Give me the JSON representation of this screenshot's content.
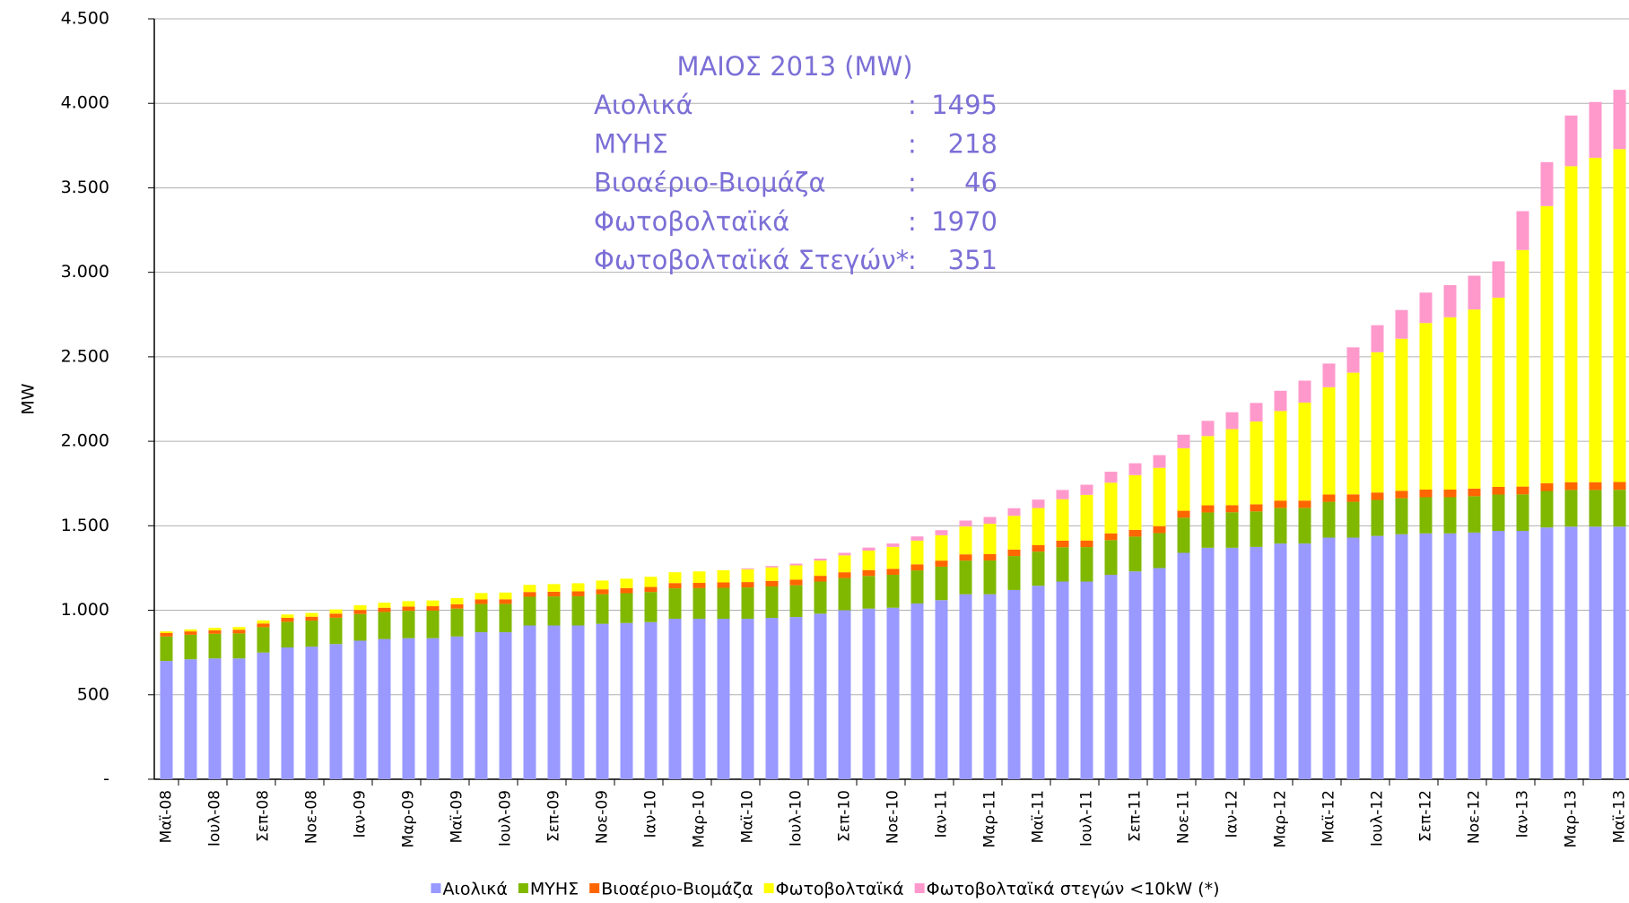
{
  "chart_data": {
    "type": "stacked-bar",
    "y_label": "MW",
    "categories": [
      "Μαϊ-08",
      null,
      "Ιουλ-08",
      null,
      "Σεπ-08",
      null,
      "Νοε-08",
      null,
      "Ιαν-09",
      null,
      "Μαρ-09",
      null,
      "Μαϊ-09",
      null,
      "Ιουλ-09",
      null,
      "Σεπ-09",
      null,
      "Νοε-09",
      null,
      "Ιαν-10",
      null,
      "Μαρ-10",
      null,
      "Μαϊ-10",
      null,
      "Ιουλ-10",
      null,
      "Σεπ-10",
      null,
      "Νοε-10",
      null,
      "Ιαν-11",
      null,
      "Μαρ-11",
      null,
      "Μαϊ-11",
      null,
      "Ιουλ-11",
      null,
      "Σεπ-11",
      null,
      "Νοε-11",
      null,
      "Ιαν-12",
      null,
      "Μαρ-12",
      null,
      "Μαϊ-12",
      null,
      "Ιουλ-12",
      null,
      "Σεπ-12",
      null,
      "Νοε-12",
      null,
      "Ιαν-13",
      null,
      "Μαρ-13",
      null,
      "Μαϊ-13"
    ],
    "series": [
      {
        "name": "Αιολικά",
        "color": "#9999ff",
        "values": [
          700,
          710,
          715,
          715,
          750,
          780,
          785,
          800,
          820,
          830,
          835,
          835,
          845,
          870,
          870,
          910,
          910,
          910,
          920,
          925,
          930,
          950,
          950,
          950,
          950,
          955,
          960,
          980,
          1000,
          1010,
          1015,
          1040,
          1060,
          1095,
          1095,
          1120,
          1145,
          1170,
          1170,
          1210,
          1230,
          1250,
          1340,
          1370,
          1370,
          1375,
          1395,
          1395,
          1430,
          1430,
          1440,
          1450,
          1455,
          1455,
          1460,
          1470,
          1470,
          1490,
          1495,
          1495,
          1495
        ]
      },
      {
        "name": "ΜΥΗΣ",
        "color": "#80b800",
        "values": [
          145,
          145,
          146,
          148,
          150,
          152,
          154,
          156,
          158,
          160,
          162,
          163,
          165,
          167,
          168,
          170,
          172,
          173,
          175,
          176,
          178,
          180,
          181,
          183,
          185,
          186,
          188,
          190,
          191,
          193,
          195,
          196,
          198,
          199,
          200,
          201,
          202,
          203,
          204,
          205,
          206,
          207,
          208,
          209,
          210,
          210,
          211,
          211,
          212,
          212,
          213,
          213,
          214,
          214,
          215,
          215,
          216,
          216,
          217,
          217,
          218
        ]
      },
      {
        "name": "Βιοαέριο-Βιομάζα",
        "color": "#ff6600",
        "values": [
          20,
          20,
          21,
          22,
          22,
          23,
          23,
          24,
          24,
          25,
          25,
          26,
          26,
          27,
          27,
          28,
          28,
          29,
          29,
          30,
          30,
          31,
          31,
          32,
          32,
          33,
          33,
          34,
          34,
          35,
          35,
          36,
          36,
          37,
          37,
          38,
          38,
          39,
          39,
          40,
          40,
          41,
          41,
          42,
          42,
          42,
          43,
          43,
          43,
          44,
          44,
          44,
          45,
          45,
          45,
          45,
          46,
          46,
          46,
          46,
          46
        ]
      },
      {
        "name": "Φωτοβολταϊκά",
        "color": "#ffff00",
        "values": [
          10,
          12,
          14,
          16,
          18,
          20,
          22,
          25,
          28,
          30,
          32,
          34,
          36,
          38,
          40,
          42,
          45,
          48,
          52,
          56,
          60,
          64,
          68,
          72,
          76,
          80,
          85,
          90,
          100,
          115,
          130,
          140,
          150,
          165,
          180,
          200,
          220,
          245,
          270,
          300,
          324,
          345,
          370,
          410,
          450,
          490,
          530,
          580,
          635,
          720,
          830,
          900,
          986,
          1020,
          1060,
          1120,
          1400,
          1640,
          1870,
          1920,
          1970
        ]
      },
      {
        "name": "Φωτοβολταϊκά στεγών <10kW (*)",
        "color": "#ff99cc",
        "values": [
          0,
          0,
          0,
          0,
          0,
          0,
          0,
          0,
          0,
          0,
          0,
          0,
          0,
          0,
          0,
          0,
          0,
          0,
          0,
          0,
          0,
          0,
          0,
          0,
          5,
          8,
          10,
          12,
          15,
          18,
          20,
          25,
          30,
          35,
          40,
          45,
          50,
          55,
          60,
          65,
          70,
          75,
          80,
          90,
          100,
          110,
          120,
          130,
          140,
          150,
          160,
          170,
          180,
          190,
          200,
          215,
          230,
          260,
          300,
          330,
          351
        ]
      }
    ],
    "ylim": [
      0,
      4500
    ],
    "yticks": [
      {
        "value": 0,
        "label": "-"
      },
      500,
      {
        "value": 1000,
        "label": "1.000"
      },
      {
        "value": 1500,
        "label": "1.500"
      },
      {
        "value": 2000,
        "label": "2.000"
      },
      {
        "value": 2500,
        "label": "2.500"
      },
      {
        "value": 3000,
        "label": "3.000"
      },
      {
        "value": 3500,
        "label": "3.500"
      },
      {
        "value": 4000,
        "label": "4.000"
      },
      {
        "value": 4500,
        "label": "4.500"
      }
    ],
    "grid": true,
    "legend": "bottom",
    "annotation": {
      "title": "ΜΑΙΟΣ 2013 (MW)",
      "color": "#7b6fd6",
      "rows": [
        {
          "label": "Αιολικά",
          "value": 1495
        },
        {
          "label": "ΜΥΗΣ",
          "value": 218
        },
        {
          "label": "Βιοαέριο-Βιομάζα",
          "value": 46
        },
        {
          "label": "Φωτοβολταϊκά",
          "value": 1970
        },
        {
          "label": "Φωτοβολταϊκά Στεγών*",
          "value": 351
        }
      ]
    }
  }
}
